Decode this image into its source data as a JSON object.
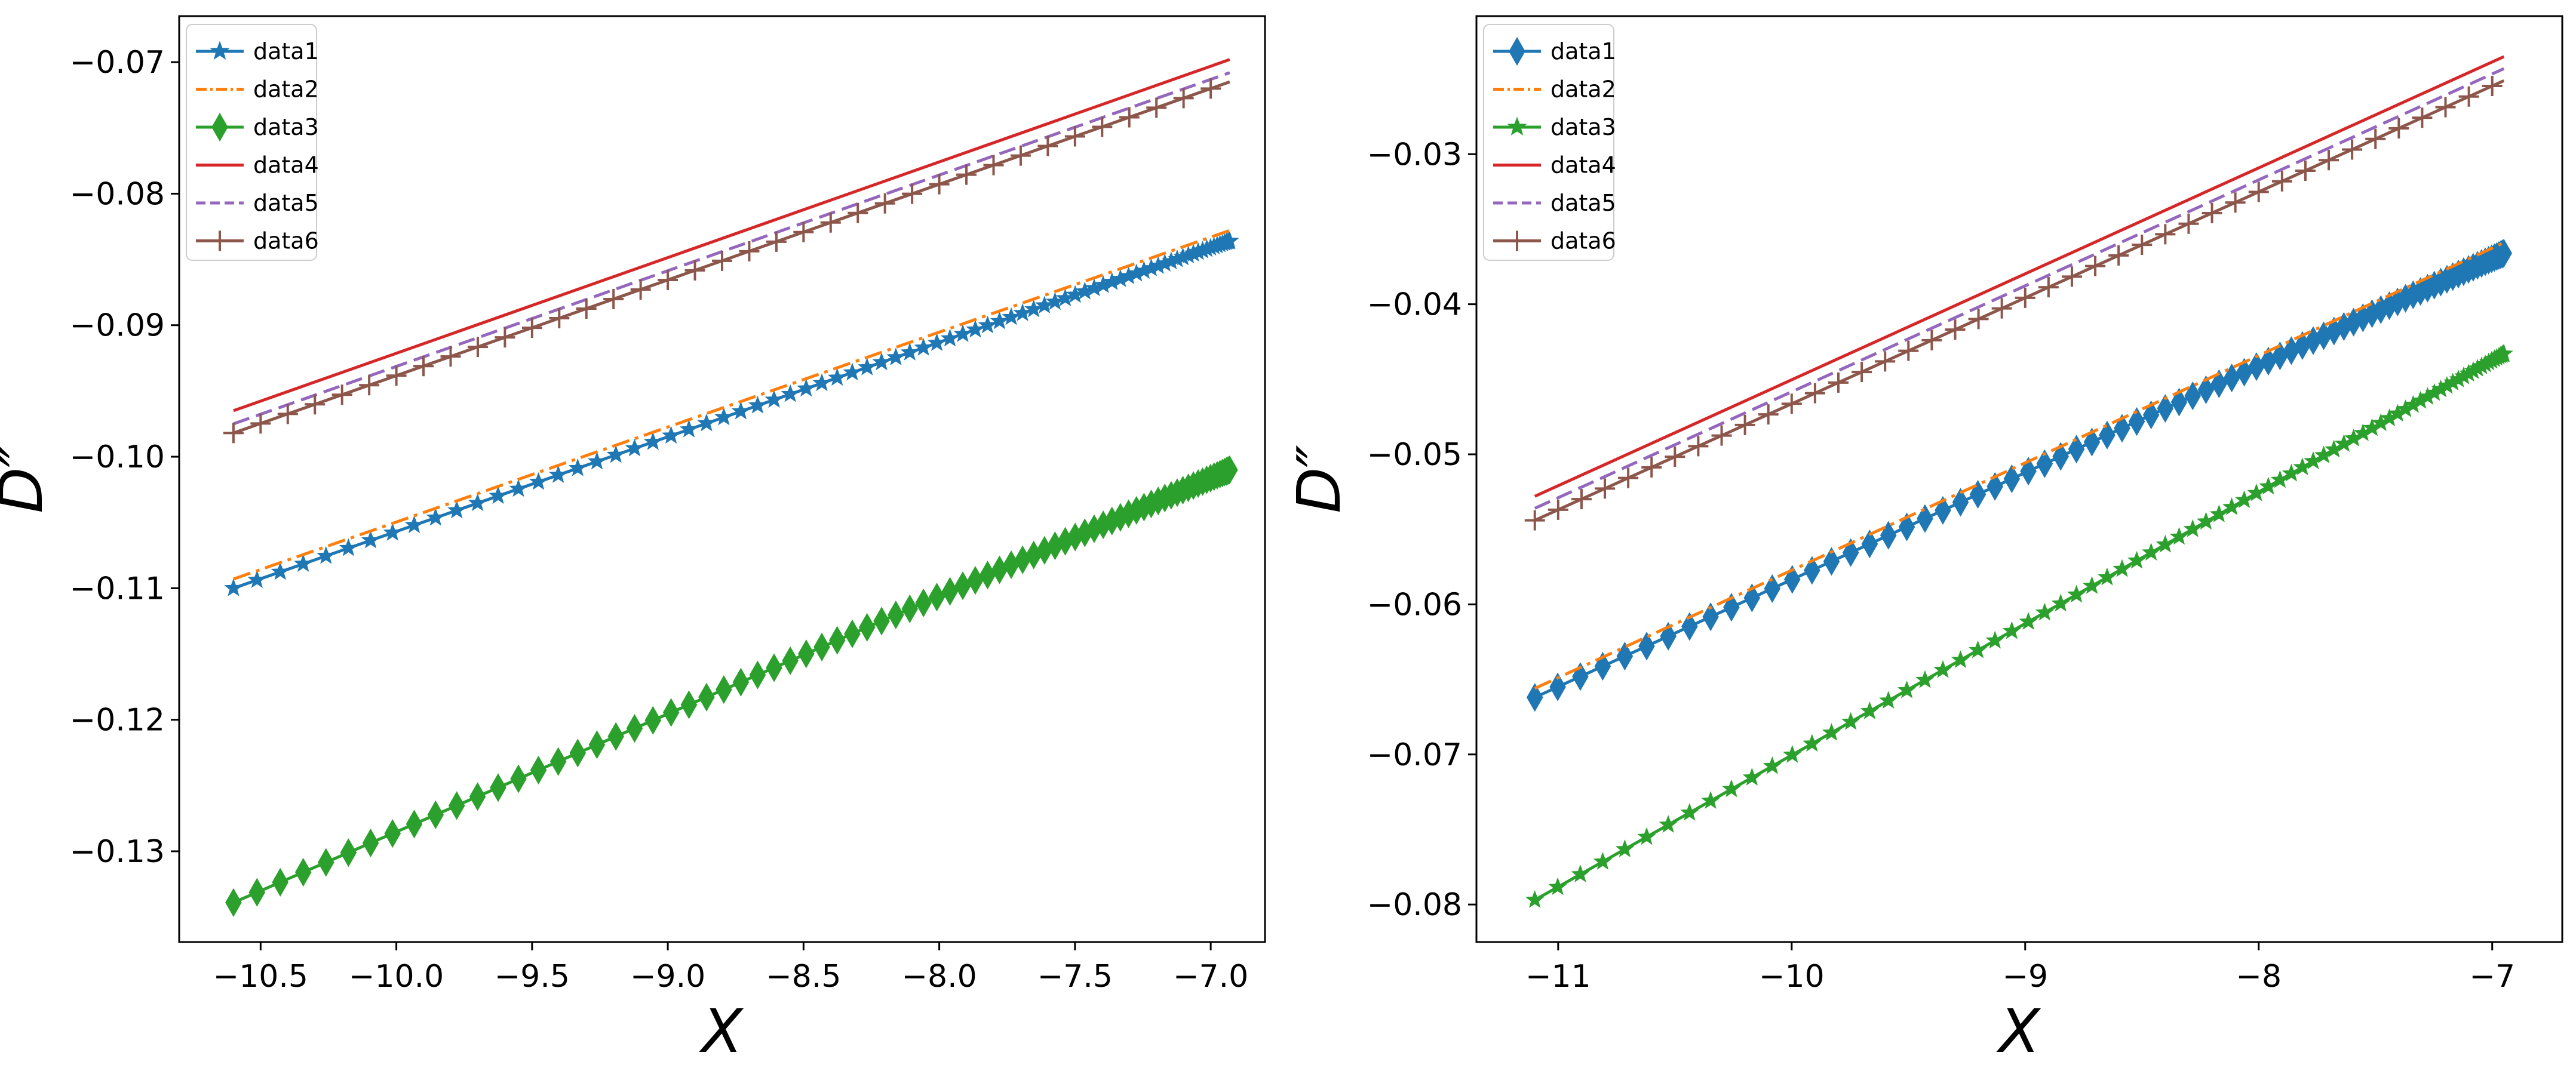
{
  "chart_data": [
    {
      "type": "line",
      "title": "",
      "xlabel": "X",
      "ylabel": "D″",
      "xlim": [
        -10.8,
        -6.8
      ],
      "ylim": [
        -0.1369,
        -0.0665
      ],
      "xticks": [
        -10.5,
        -10.0,
        -9.5,
        -9.0,
        -8.5,
        -8.0,
        -7.5,
        -7.0
      ],
      "xtick_labels": [
        "−10.5",
        "−10.0",
        "−9.5",
        "−9.0",
        "−8.5",
        "−8.0",
        "−7.5",
        "−7.0"
      ],
      "yticks": [
        -0.13,
        -0.12,
        -0.11,
        -0.1,
        -0.09,
        -0.08,
        -0.07
      ],
      "ytick_labels": [
        "−0.13",
        "−0.12",
        "−0.11",
        "−0.10",
        "−0.09",
        "−0.08",
        "−0.07"
      ],
      "grid": false,
      "legend_position": "top-left",
      "x_start": -10.6,
      "x_end": -6.93,
      "series": [
        {
          "name": "data1",
          "y_start": -0.11,
          "y_end": -0.0836,
          "color": "#1f77b4",
          "linestyle": "solid",
          "marker": "star"
        },
        {
          "name": "data2",
          "y_start": -0.1093,
          "y_end": -0.0828,
          "color": "#ff7f0e",
          "linestyle": "dashdot",
          "marker": "none"
        },
        {
          "name": "data3",
          "y_start": -0.1339,
          "y_end": -0.101,
          "color": "#2ca02c",
          "linestyle": "solid",
          "marker": "thin_diamond"
        },
        {
          "name": "data4",
          "y_start": -0.0965,
          "y_end": -0.0698,
          "color": "#d62728",
          "linestyle": "solid",
          "marker": "none"
        },
        {
          "name": "data5",
          "y_start": -0.0975,
          "y_end": -0.0708,
          "color": "#9467bd",
          "linestyle": "dashed",
          "marker": "none"
        },
        {
          "name": "data6",
          "y_start": -0.0982,
          "y_end": -0.0715,
          "color": "#8c564b",
          "linestyle": "solid",
          "marker": "plus"
        }
      ]
    },
    {
      "type": "line",
      "title": "",
      "xlabel": "X",
      "ylabel": "D″",
      "xlim": [
        -11.35,
        -6.7
      ],
      "ylim": [
        -0.0825,
        -0.0208
      ],
      "xticks": [
        -11,
        -10,
        -9,
        -8,
        -7
      ],
      "xtick_labels": [
        "−11",
        "−10",
        "−9",
        "−8",
        "−7"
      ],
      "yticks": [
        -0.08,
        -0.07,
        -0.06,
        -0.05,
        -0.04,
        -0.03
      ],
      "ytick_labels": [
        "−0.08",
        "−0.07",
        "−0.06",
        "−0.05",
        "−0.04",
        "−0.03"
      ],
      "grid": false,
      "legend_position": "top-left",
      "x_start": -11.1,
      "x_end": -6.95,
      "series": [
        {
          "name": "data1",
          "y_start": -0.0662,
          "y_end": -0.0366,
          "color": "#1f77b4",
          "linestyle": "solid",
          "marker": "thin_diamond"
        },
        {
          "name": "data2",
          "y_start": -0.0656,
          "y_end": -0.0359,
          "color": "#ff7f0e",
          "linestyle": "dashdot",
          "marker": "none"
        },
        {
          "name": "data3",
          "y_start": -0.0797,
          "y_end": -0.0433,
          "color": "#2ca02c",
          "linestyle": "solid",
          "marker": "star"
        },
        {
          "name": "data4",
          "y_start": -0.0528,
          "y_end": -0.0235,
          "color": "#d62728",
          "linestyle": "solid",
          "marker": "none"
        },
        {
          "name": "data5",
          "y_start": -0.0536,
          "y_end": -0.0243,
          "color": "#9467bd",
          "linestyle": "dashed",
          "marker": "none"
        },
        {
          "name": "data6",
          "y_start": -0.0544,
          "y_end": -0.0251,
          "color": "#8c564b",
          "linestyle": "solid",
          "marker": "plus"
        }
      ]
    }
  ]
}
